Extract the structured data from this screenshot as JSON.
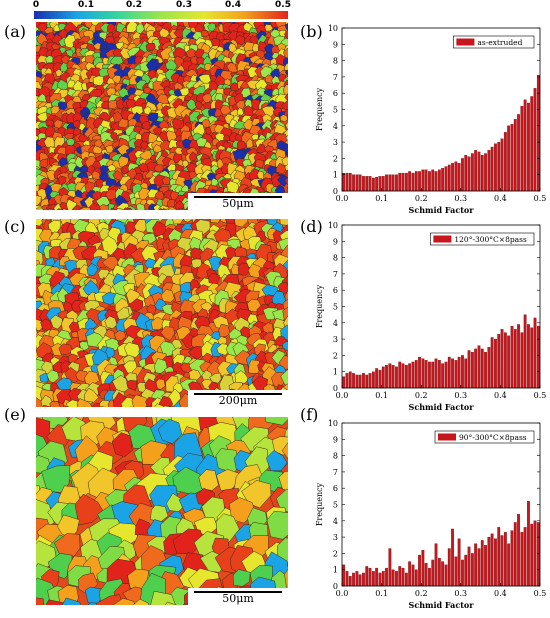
{
  "colorbar": {
    "ticks": [
      "0",
      "0.1",
      "0.2",
      "0.3",
      "0.4",
      "0.5"
    ],
    "colors": [
      "#1a2fb0",
      "#1aa4e6",
      "#36d69a",
      "#9be64a",
      "#e6e62e",
      "#f4a01c",
      "#e2231c"
    ]
  },
  "panels": {
    "a": {
      "label": "(a)",
      "scalebar": "50μm",
      "tone": "fine"
    },
    "c": {
      "label": "(c)",
      "scalebar": "200μm",
      "tone": "medium"
    },
    "e": {
      "label": "(e)",
      "scalebar": "50μm",
      "tone": "coarse"
    },
    "b": {
      "label": "(b)"
    },
    "d": {
      "label": "(d)"
    },
    "f": {
      "label": "(f)"
    }
  },
  "chart_data": [
    {
      "type": "bar",
      "panel": "(b)",
      "xlabel": "Schmid Factor",
      "ylabel": "Frequency",
      "xlim": [
        0,
        0.5
      ],
      "ylim": [
        0,
        10
      ],
      "xticks": [
        "0.0",
        "0.1",
        "0.2",
        "0.3",
        "0.4",
        "0.5"
      ],
      "yticks": [
        "0",
        "1",
        "2",
        "3",
        "4",
        "5",
        "6",
        "7",
        "8",
        "9",
        "10"
      ],
      "legend": "as-extruded",
      "bar_color": "#c8161d",
      "bin_width": 0.01,
      "bin_start": 0.0,
      "values": [
        1.1,
        1.1,
        1.1,
        1.0,
        1.0,
        1.0,
        0.9,
        0.9,
        0.9,
        0.8,
        0.85,
        0.9,
        0.9,
        1.0,
        1.0,
        1.0,
        1.0,
        1.1,
        1.1,
        1.1,
        1.2,
        1.1,
        1.2,
        1.2,
        1.3,
        1.3,
        1.2,
        1.3,
        1.2,
        1.3,
        1.4,
        1.5,
        1.6,
        1.7,
        1.8,
        1.7,
        2.0,
        2.2,
        2.1,
        2.3,
        2.5,
        2.4,
        2.2,
        2.3,
        2.5,
        2.7,
        2.9,
        3.0,
        3.2,
        3.6,
        4.0,
        4.1,
        4.4,
        4.7,
        5.2,
        5.6,
        5.4,
        5.8,
        6.3,
        7.1
      ]
    },
    {
      "type": "bar",
      "panel": "(d)",
      "xlabel": "Schmid Factor",
      "ylabel": "Frequency",
      "xlim": [
        0,
        0.5
      ],
      "ylim": [
        0,
        10
      ],
      "xticks": [
        "0.0",
        "0.1",
        "0.2",
        "0.3",
        "0.4",
        "0.5"
      ],
      "yticks": [
        "0",
        "1",
        "2",
        "3",
        "4",
        "5",
        "6",
        "7",
        "8",
        "9",
        "10"
      ],
      "legend": "120°-300°C×8pass",
      "bar_color": "#c8161d",
      "bin_width": 0.01,
      "bin_start": 0.0,
      "values": [
        0.7,
        0.9,
        1.0,
        0.9,
        0.8,
        0.8,
        0.9,
        0.8,
        0.9,
        1.0,
        1.2,
        1.1,
        1.3,
        1.4,
        1.5,
        1.4,
        1.3,
        1.6,
        1.5,
        1.4,
        1.5,
        1.6,
        1.7,
        1.9,
        1.8,
        1.7,
        1.6,
        1.6,
        1.8,
        1.7,
        1.5,
        1.6,
        1.9,
        1.8,
        1.7,
        1.9,
        2.0,
        1.8,
        2.3,
        2.2,
        2.4,
        2.6,
        2.4,
        2.2,
        2.5,
        3.1,
        3.0,
        3.3,
        3.6,
        3.4,
        3.2,
        3.8,
        3.6,
        3.9,
        3.4,
        4.5,
        3.9,
        3.7,
        4.3,
        3.8
      ]
    },
    {
      "type": "bar",
      "panel": "(f)",
      "xlabel": "Schmid Factor",
      "ylabel": "Frequency",
      "xlim": [
        0,
        0.5
      ],
      "ylim": [
        0,
        10
      ],
      "xticks": [
        "0.0",
        "0.1",
        "0.2",
        "0.3",
        "0.4",
        "0.5"
      ],
      "yticks": [
        "0",
        "1",
        "2",
        "3",
        "4",
        "5",
        "6",
        "7",
        "8",
        "9",
        "10"
      ],
      "legend": "90°-300°C×8pass",
      "bar_color": "#c8161d",
      "bin_width": 0.01,
      "bin_start": 0.0,
      "values": [
        1.3,
        0.9,
        0.6,
        0.8,
        0.9,
        0.7,
        0.8,
        1.2,
        1.1,
        0.9,
        1.1,
        0.8,
        0.9,
        1.1,
        2.3,
        1.0,
        0.9,
        1.2,
        1.1,
        0.8,
        1.5,
        1.3,
        1.0,
        1.9,
        2.2,
        1.4,
        1.1,
        1.6,
        2.6,
        1.7,
        1.5,
        1.3,
        2.3,
        3.5,
        1.8,
        2.9,
        1.6,
        1.9,
        2.4,
        2.0,
        2.6,
        2.3,
        2.8,
        2.5,
        3.0,
        3.2,
        2.9,
        3.6,
        3.1,
        3.3,
        2.6,
        3.4,
        3.9,
        4.4,
        3.3,
        3.6,
        5.2,
        3.8,
        4.0,
        3.9
      ]
    }
  ]
}
